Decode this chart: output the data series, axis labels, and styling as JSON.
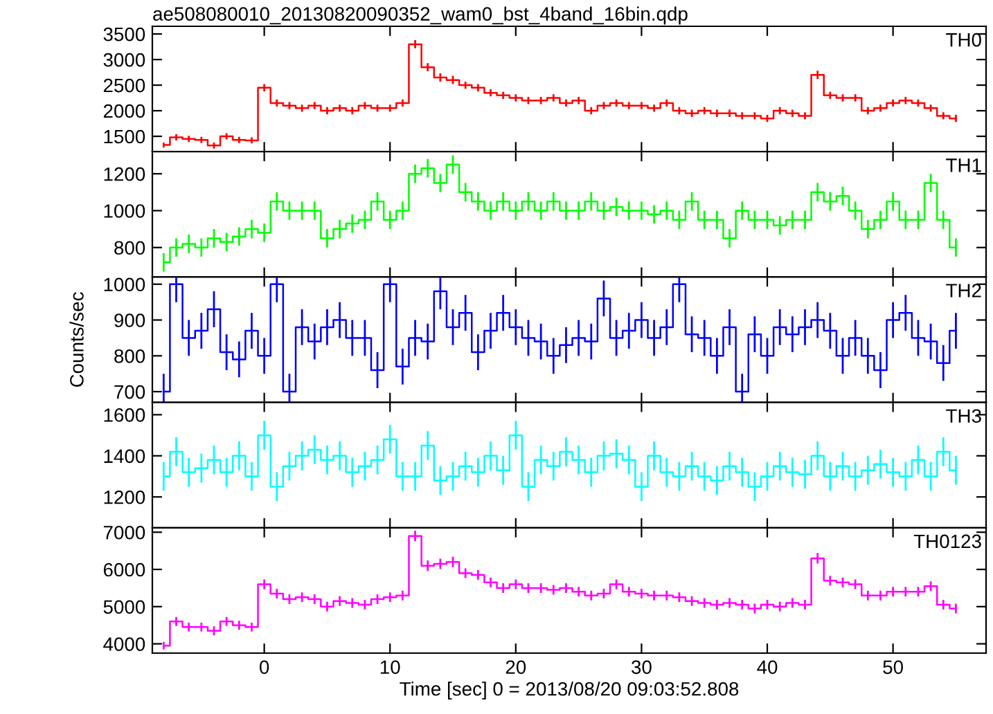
{
  "chart_data": [
    {
      "type": "step",
      "title": "ae508080010_20130820090352_wam0_bst_4band_16bin.qdp",
      "annotations": [
        "TH0"
      ],
      "tick_labels": "y",
      "x": [
        -8,
        -7,
        -6,
        -5,
        -4,
        -3,
        -2,
        -1,
        0,
        1,
        2,
        3,
        4,
        5,
        6,
        7,
        8,
        9,
        10,
        11,
        12,
        13,
        14,
        15,
        16,
        17,
        18,
        19,
        20,
        21,
        22,
        23,
        24,
        25,
        26,
        27,
        28,
        29,
        30,
        31,
        32,
        33,
        34,
        35,
        36,
        37,
        38,
        39,
        40,
        41,
        42,
        43,
        44,
        45,
        46,
        47,
        48,
        49,
        50,
        51,
        52,
        53,
        54,
        55
      ],
      "xlim": [
        -8.9,
        57.4
      ],
      "xticks": [
        0,
        10,
        20,
        30,
        40,
        50
      ],
      "ylim": [
        1200,
        3650
      ],
      "yticks": [
        1500,
        2000,
        2500,
        3000,
        3500
      ],
      "series": [
        {
          "color": "#ff0000",
          "values": [
            1330,
            1480,
            1450,
            1430,
            1320,
            1500,
            1430,
            1420,
            2450,
            2150,
            2100,
            2050,
            2100,
            2000,
            2050,
            2000,
            2100,
            2050,
            2050,
            2150,
            3300,
            2850,
            2650,
            2600,
            2500,
            2450,
            2350,
            2300,
            2250,
            2200,
            2200,
            2250,
            2150,
            2200,
            2000,
            2100,
            2150,
            2100,
            2100,
            2050,
            2150,
            2000,
            1950,
            2000,
            1950,
            1950,
            1900,
            1900,
            1850,
            2000,
            1950,
            1900,
            2700,
            2300,
            2250,
            2250,
            2000,
            2050,
            2150,
            2200,
            2150,
            2050,
            1900,
            1850
          ],
          "errors": [
            50,
            60,
            60,
            60,
            60,
            60,
            60,
            60,
            70,
            70,
            70,
            70,
            70,
            70,
            70,
            70,
            70,
            70,
            70,
            70,
            80,
            80,
            80,
            80,
            70,
            70,
            70,
            70,
            70,
            70,
            70,
            70,
            70,
            70,
            70,
            70,
            70,
            70,
            70,
            70,
            70,
            70,
            70,
            70,
            70,
            70,
            70,
            70,
            70,
            70,
            70,
            70,
            80,
            70,
            70,
            70,
            70,
            70,
            70,
            70,
            70,
            70,
            70,
            70
          ]
        }
      ]
    },
    {
      "type": "step",
      "annotations": [
        "TH1"
      ],
      "tick_labels": "y",
      "x": [
        -8,
        -7,
        -6,
        -5,
        -4,
        -3,
        -2,
        -1,
        0,
        1,
        2,
        3,
        4,
        5,
        6,
        7,
        8,
        9,
        10,
        11,
        12,
        13,
        14,
        15,
        16,
        17,
        18,
        19,
        20,
        21,
        22,
        23,
        24,
        25,
        26,
        27,
        28,
        29,
        30,
        31,
        32,
        33,
        34,
        35,
        36,
        37,
        38,
        39,
        40,
        41,
        42,
        43,
        44,
        45,
        46,
        47,
        48,
        49,
        50,
        51,
        52,
        53,
        54,
        55
      ],
      "xlim": [
        -8.9,
        57.4
      ],
      "xticks": [
        0,
        10,
        20,
        30,
        40,
        50
      ],
      "ylim": [
        640,
        1320
      ],
      "yticks": [
        800,
        1000,
        1200
      ],
      "series": [
        {
          "color": "#00ff00",
          "values": [
            720,
            800,
            820,
            800,
            850,
            830,
            860,
            900,
            880,
            1050,
            1000,
            1000,
            1000,
            850,
            900,
            930,
            950,
            1050,
            950,
            1000,
            1200,
            1230,
            1150,
            1250,
            1100,
            1050,
            1000,
            1050,
            1000,
            1050,
            1000,
            1050,
            1000,
            1000,
            1050,
            1000,
            1020,
            1000,
            1000,
            980,
            1000,
            950,
            1050,
            950,
            950,
            850,
            1000,
            950,
            950,
            920,
            950,
            950,
            1100,
            1050,
            1080,
            1000,
            900,
            950,
            1050,
            950,
            950,
            1150,
            950,
            800
          ],
          "errors": [
            50,
            50,
            50,
            50,
            50,
            50,
            50,
            50,
            50,
            50,
            50,
            50,
            50,
            50,
            50,
            50,
            50,
            50,
            50,
            50,
            50,
            50,
            50,
            50,
            50,
            50,
            50,
            50,
            50,
            50,
            50,
            50,
            50,
            50,
            50,
            50,
            50,
            50,
            50,
            50,
            50,
            50,
            50,
            50,
            50,
            50,
            50,
            50,
            50,
            50,
            50,
            50,
            50,
            50,
            50,
            50,
            50,
            50,
            50,
            50,
            50,
            50,
            50,
            50
          ]
        }
      ]
    },
    {
      "type": "step",
      "annotations": [
        "TH2"
      ],
      "tick_labels": "y",
      "ylabel": "Counts/sec",
      "x": [
        -8,
        -7,
        -6,
        -5,
        -4,
        -3,
        -2,
        -1,
        0,
        1,
        2,
        3,
        4,
        5,
        6,
        7,
        8,
        9,
        10,
        11,
        12,
        13,
        14,
        15,
        16,
        17,
        18,
        19,
        20,
        21,
        22,
        23,
        24,
        25,
        26,
        27,
        28,
        29,
        30,
        31,
        32,
        33,
        34,
        35,
        36,
        37,
        38,
        39,
        40,
        41,
        42,
        43,
        44,
        45,
        46,
        47,
        48,
        49,
        50,
        51,
        52,
        53,
        54,
        55
      ],
      "xlim": [
        -8.9,
        57.4
      ],
      "xticks": [
        0,
        10,
        20,
        30,
        40,
        50
      ],
      "ylim": [
        670,
        1020
      ],
      "yticks": [
        700,
        800,
        900,
        1000
      ],
      "series": [
        {
          "color": "#0000ff",
          "values": [
            700,
            1000,
            850,
            870,
            930,
            810,
            790,
            870,
            800,
            1000,
            700,
            880,
            840,
            880,
            900,
            850,
            850,
            760,
            1000,
            770,
            850,
            840,
            980,
            880,
            920,
            810,
            870,
            920,
            880,
            850,
            840,
            800,
            830,
            850,
            840,
            960,
            850,
            870,
            900,
            850,
            880,
            1000,
            860,
            850,
            800,
            880,
            700,
            860,
            800,
            880,
            860,
            880,
            900,
            870,
            800,
            850,
            800,
            760,
            900,
            920,
            850,
            840,
            780,
            870
          ],
          "errors": [
            50,
            50,
            50,
            50,
            50,
            50,
            50,
            50,
            50,
            50,
            50,
            50,
            50,
            50,
            50,
            50,
            50,
            50,
            50,
            50,
            50,
            50,
            50,
            50,
            50,
            50,
            50,
            50,
            50,
            50,
            50,
            50,
            50,
            50,
            50,
            50,
            50,
            50,
            50,
            50,
            50,
            50,
            50,
            50,
            50,
            50,
            50,
            50,
            50,
            50,
            50,
            50,
            50,
            50,
            50,
            50,
            50,
            50,
            50,
            50,
            50,
            50,
            50,
            50
          ]
        }
      ]
    },
    {
      "type": "step",
      "annotations": [
        "TH3"
      ],
      "tick_labels": "y",
      "x": [
        -8,
        -7,
        -6,
        -5,
        -4,
        -3,
        -2,
        -1,
        0,
        1,
        2,
        3,
        4,
        5,
        6,
        7,
        8,
        9,
        10,
        11,
        12,
        13,
        14,
        15,
        16,
        17,
        18,
        19,
        20,
        21,
        22,
        23,
        24,
        25,
        26,
        27,
        28,
        29,
        30,
        31,
        32,
        33,
        34,
        35,
        36,
        37,
        38,
        39,
        40,
        41,
        42,
        43,
        44,
        45,
        46,
        47,
        48,
        49,
        50,
        51,
        52,
        53,
        54,
        55
      ],
      "xlim": [
        -8.9,
        57.4
      ],
      "xticks": [
        0,
        10,
        20,
        30,
        40,
        50
      ],
      "ylim": [
        1050,
        1660
      ],
      "yticks": [
        1200,
        1400,
        1600
      ],
      "series": [
        {
          "color": "#00ffff",
          "values": [
            1300,
            1420,
            1320,
            1340,
            1380,
            1320,
            1400,
            1300,
            1500,
            1250,
            1350,
            1400,
            1430,
            1380,
            1400,
            1320,
            1350,
            1380,
            1480,
            1300,
            1300,
            1450,
            1280,
            1300,
            1350,
            1320,
            1400,
            1330,
            1500,
            1250,
            1380,
            1350,
            1420,
            1380,
            1320,
            1400,
            1410,
            1380,
            1250,
            1400,
            1320,
            1300,
            1350,
            1300,
            1280,
            1350,
            1320,
            1250,
            1300,
            1350,
            1320,
            1310,
            1400,
            1300,
            1350,
            1300,
            1330,
            1360,
            1320,
            1300,
            1380,
            1300,
            1420,
            1330
          ],
          "errors": [
            70,
            70,
            70,
            70,
            70,
            70,
            70,
            70,
            70,
            70,
            70,
            70,
            70,
            70,
            70,
            70,
            70,
            70,
            70,
            70,
            70,
            70,
            70,
            70,
            70,
            70,
            70,
            70,
            70,
            70,
            70,
            70,
            70,
            70,
            70,
            70,
            70,
            70,
            70,
            70,
            70,
            70,
            70,
            70,
            70,
            70,
            70,
            70,
            70,
            70,
            70,
            70,
            70,
            70,
            70,
            70,
            70,
            70,
            70,
            70,
            70,
            70,
            70,
            70
          ]
        }
      ]
    },
    {
      "type": "step",
      "annotations": [
        "TH0123"
      ],
      "xlabel": "Time [sec] 0 = 2013/08/20 09:03:52.808",
      "x": [
        -8,
        -7,
        -6,
        -5,
        -4,
        -3,
        -2,
        -1,
        0,
        1,
        2,
        3,
        4,
        5,
        6,
        7,
        8,
        9,
        10,
        11,
        12,
        13,
        14,
        15,
        16,
        17,
        18,
        19,
        20,
        21,
        22,
        23,
        24,
        25,
        26,
        27,
        28,
        29,
        30,
        31,
        32,
        33,
        34,
        35,
        36,
        37,
        38,
        39,
        40,
        41,
        42,
        43,
        44,
        45,
        46,
        47,
        48,
        49,
        50,
        51,
        52,
        53,
        54,
        55
      ],
      "xlim": [
        -8.9,
        57.4
      ],
      "xticks": [
        0,
        10,
        20,
        30,
        40,
        50
      ],
      "ylim": [
        3750,
        7120
      ],
      "yticks": [
        4000,
        5000,
        6000,
        7000
      ],
      "series": [
        {
          "color": "#ff00ff",
          "values": [
            3950,
            4600,
            4450,
            4450,
            4350,
            4600,
            4500,
            4450,
            5600,
            5350,
            5200,
            5250,
            5200,
            5000,
            5150,
            5100,
            5050,
            5200,
            5250,
            5300,
            6900,
            6100,
            6150,
            6200,
            5900,
            5850,
            5650,
            5500,
            5600,
            5500,
            5500,
            5450,
            5500,
            5400,
            5300,
            5350,
            5600,
            5400,
            5350,
            5300,
            5300,
            5250,
            5150,
            5100,
            5050,
            5100,
            5050,
            4950,
            5050,
            5000,
            5100,
            5050,
            6300,
            5700,
            5650,
            5600,
            5300,
            5300,
            5400,
            5400,
            5400,
            5550,
            5050,
            4950
          ],
          "errors": [
            100,
            120,
            120,
            120,
            120,
            120,
            120,
            120,
            130,
            130,
            130,
            130,
            130,
            130,
            130,
            130,
            130,
            130,
            130,
            130,
            140,
            140,
            140,
            140,
            130,
            130,
            130,
            130,
            130,
            130,
            130,
            130,
            130,
            130,
            130,
            130,
            130,
            130,
            130,
            130,
            130,
            130,
            130,
            130,
            130,
            130,
            130,
            130,
            130,
            130,
            130,
            130,
            140,
            130,
            130,
            130,
            130,
            130,
            130,
            130,
            130,
            130,
            130,
            130
          ]
        }
      ]
    }
  ]
}
